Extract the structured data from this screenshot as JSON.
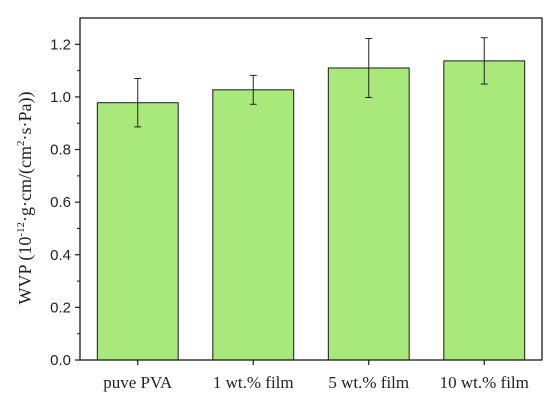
{
  "chart_data": {
    "type": "bar",
    "categories": [
      "puve PVA",
      "1 wt.% film",
      "5 wt.% film",
      "10 wt.% film"
    ],
    "values": [
      0.978,
      1.027,
      1.11,
      1.137
    ],
    "errors": [
      0.092,
      0.055,
      0.112,
      0.088
    ],
    "ylim": [
      0.0,
      1.3
    ],
    "yticks": [
      "0.0",
      "0.2",
      "0.4",
      "0.6",
      "0.8",
      "1.0",
      "1.2"
    ],
    "ylabel": {
      "part1": "WVP (10",
      "sup1": "-12",
      "part2": "·g·cm/(cm",
      "sup2": "2",
      "part3": "·s·Pa))"
    },
    "xlabel": "",
    "title": "",
    "grid": false,
    "colors": {
      "bar_fill": "#a9e87a",
      "bar_stroke": "#1a1a1a",
      "axis": "#1a1a1a"
    }
  }
}
